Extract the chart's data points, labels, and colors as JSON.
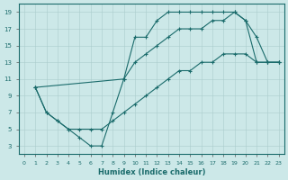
{
  "xlabel": "Humidex (Indice chaleur)",
  "xlim": [
    -0.5,
    23.5
  ],
  "ylim": [
    2,
    20
  ],
  "xticks": [
    0,
    1,
    2,
    3,
    4,
    5,
    6,
    7,
    8,
    9,
    10,
    11,
    12,
    13,
    14,
    15,
    16,
    17,
    18,
    19,
    20,
    21,
    22,
    23
  ],
  "yticks": [
    3,
    5,
    7,
    9,
    11,
    13,
    15,
    17,
    19
  ],
  "bg_color": "#cce8e8",
  "line_color": "#1a6b6b",
  "line1_x": [
    1,
    2,
    3,
    4,
    5,
    6,
    7,
    8,
    9,
    10,
    11,
    12,
    13,
    14,
    15,
    16,
    17,
    18,
    19,
    20,
    21,
    22,
    23
  ],
  "line1_y": [
    10,
    7,
    6,
    5,
    4,
    3,
    3,
    7,
    11,
    16,
    16,
    18,
    19,
    19,
    19,
    19,
    19,
    19,
    19,
    18,
    13,
    13,
    13
  ],
  "line2_x": [
    1,
    9,
    10,
    11,
    12,
    13,
    14,
    15,
    16,
    17,
    18,
    19,
    20,
    21,
    22,
    23
  ],
  "line2_y": [
    10,
    11,
    13,
    14,
    15,
    16,
    17,
    17,
    17,
    18,
    18,
    19,
    18,
    16,
    13,
    13
  ],
  "line3_x": [
    1,
    2,
    3,
    4,
    5,
    6,
    7,
    8,
    9,
    10,
    11,
    12,
    13,
    14,
    15,
    16,
    17,
    18,
    19,
    20,
    21,
    22,
    23
  ],
  "line3_y": [
    10,
    7,
    6,
    5,
    5,
    5,
    5,
    6,
    7,
    8,
    9,
    10,
    11,
    12,
    12,
    13,
    13,
    14,
    14,
    14,
    13,
    13,
    13
  ]
}
